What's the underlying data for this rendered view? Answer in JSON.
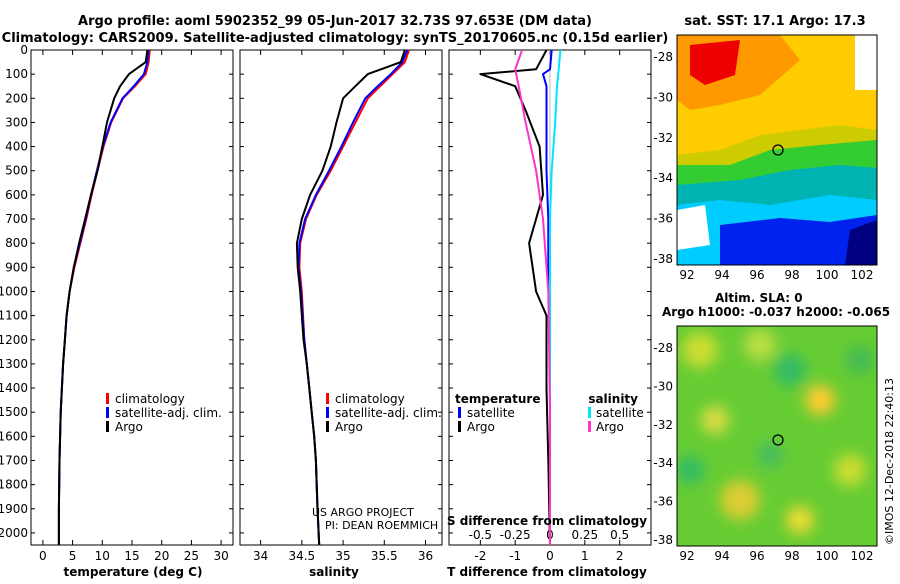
{
  "header": {
    "line1": "Argo profile: aoml 5902352_99 05-Jun-2017 32.73S 97.653E (DM data)",
    "line2": "Climatology: CARS2009. Satellite-adjusted climatology: synTS_20170605.nc (0.15d earlier)"
  },
  "colors": {
    "climatology": "#ff0000",
    "satellite_adj": "#0000ff",
    "argo": "#000000",
    "satellite_s": "#00e5ff",
    "argo_s": "#ff33cc"
  },
  "chart_data": [
    {
      "type": "line",
      "panel": "temperature",
      "xlabel": "temperature (deg C)",
      "ylabel": "",
      "xlim": [
        -2,
        32
      ],
      "ylim": [
        2050,
        0
      ],
      "xticks": [
        0,
        5,
        10,
        15,
        20,
        25,
        30
      ],
      "yticks": [
        0,
        100,
        200,
        300,
        400,
        500,
        600,
        700,
        800,
        900,
        1000,
        1100,
        1200,
        1300,
        1400,
        1500,
        1600,
        1700,
        1800,
        1900,
        2000
      ],
      "legend": [
        "climatology",
        "satellite-adj. clim.",
        "Argo"
      ],
      "series": [
        {
          "name": "climatology",
          "x": [
            18,
            17.8,
            17.3,
            15.5,
            13.5,
            11.5,
            10.2,
            9.2,
            8.2,
            7.3,
            6.3,
            5.3,
            4.5,
            4.0,
            3.7,
            3.4,
            3.2,
            3.0,
            2.9,
            2.8,
            2.7,
            2.7
          ],
          "y": [
            0,
            50,
            100,
            150,
            200,
            300,
            400,
            500,
            600,
            700,
            800,
            900,
            1000,
            1100,
            1200,
            1300,
            1400,
            1500,
            1600,
            1700,
            1900,
            2050
          ]
        },
        {
          "name": "satellite-adj. clim.",
          "x": [
            17.8,
            17.6,
            17.0,
            15.3,
            13.4,
            11.4,
            10.1,
            9.1,
            8.1,
            7.2,
            6.2,
            5.2,
            4.5,
            4.0,
            3.7,
            3.4,
            3.2,
            3.0,
            2.9,
            2.8,
            2.7,
            2.7
          ],
          "y": [
            0,
            50,
            100,
            150,
            200,
            300,
            400,
            500,
            600,
            700,
            800,
            900,
            1000,
            1100,
            1200,
            1300,
            1400,
            1500,
            1600,
            1700,
            1900,
            2050
          ]
        },
        {
          "name": "Argo",
          "x": [
            17.6,
            17.3,
            14.5,
            13.0,
            12.0,
            10.8,
            10.0,
            9.2,
            8.1,
            7.1,
            6.1,
            5.2,
            4.5,
            4.0,
            3.7,
            3.4,
            3.2,
            3.0,
            2.9,
            2.8,
            2.7,
            2.7
          ],
          "y": [
            0,
            50,
            100,
            150,
            200,
            300,
            400,
            500,
            600,
            700,
            800,
            900,
            1000,
            1100,
            1200,
            1300,
            1400,
            1500,
            1600,
            1700,
            1900,
            2050
          ]
        }
      ]
    },
    {
      "type": "line",
      "panel": "salinity",
      "xlabel": "salinity",
      "xlim": [
        33.75,
        36.2
      ],
      "ylim": [
        2050,
        0
      ],
      "xticks": [
        34,
        34.5,
        35,
        35.5,
        36
      ],
      "legend": [
        "climatology",
        "satellite-adj. clim.",
        "Argo"
      ],
      "series": [
        {
          "name": "climatology",
          "x": [
            35.8,
            35.75,
            35.6,
            35.45,
            35.3,
            35.15,
            35.0,
            34.85,
            34.68,
            34.55,
            34.48,
            34.47,
            34.5,
            34.53,
            34.56,
            34.59,
            34.62,
            34.65,
            34.67,
            34.69,
            34.71
          ],
          "y": [
            0,
            50,
            100,
            150,
            200,
            300,
            400,
            500,
            600,
            700,
            800,
            900,
            1000,
            1200,
            1300,
            1400,
            1500,
            1600,
            1700,
            1900,
            2050
          ]
        },
        {
          "name": "satellite-adj. clim.",
          "x": [
            35.78,
            35.72,
            35.58,
            35.42,
            35.27,
            35.12,
            34.98,
            34.83,
            34.67,
            34.54,
            34.47,
            34.46,
            34.49,
            34.53,
            34.56,
            34.59,
            34.62,
            34.65,
            34.67,
            34.69,
            34.71
          ],
          "y": [
            0,
            50,
            100,
            150,
            200,
            300,
            400,
            500,
            600,
            700,
            800,
            900,
            1000,
            1200,
            1300,
            1400,
            1500,
            1600,
            1700,
            1900,
            2050
          ]
        },
        {
          "name": "Argo",
          "x": [
            35.75,
            35.7,
            35.3,
            35.15,
            35.0,
            34.92,
            34.85,
            34.75,
            34.6,
            34.5,
            34.44,
            34.45,
            34.48,
            34.52,
            34.56,
            34.59,
            34.62,
            34.65,
            34.67,
            34.69,
            34.71
          ],
          "y": [
            0,
            50,
            100,
            150,
            200,
            300,
            400,
            500,
            600,
            700,
            800,
            900,
            1000,
            1200,
            1300,
            1400,
            1500,
            1600,
            1700,
            1900,
            2050
          ]
        }
      ]
    },
    {
      "type": "line",
      "panel": "difference",
      "xlabel": "T difference from climatology",
      "xlabel_top": "S difference from climatology",
      "xlim": [
        -2.9,
        2.9
      ],
      "ylim": [
        2050,
        0
      ],
      "xticks": [
        -2,
        -1,
        0,
        1,
        2
      ],
      "xticks_s": [
        "-0.5",
        "-0.25",
        "0",
        "0.25",
        "0.5"
      ],
      "xticks_s_pos": [
        -2,
        -1,
        0,
        1,
        2
      ],
      "legend_groups": [
        "temperature",
        "salinity"
      ],
      "legend": [
        "satellite",
        "Argo",
        "satellite",
        "Argo"
      ],
      "series": [
        {
          "name": "T satellite",
          "x": [
            0.05,
            0.0,
            -0.2,
            -0.1,
            -0.1,
            -0.1,
            -0.05,
            -0.05,
            0.0,
            0.0,
            0.0,
            0.0
          ],
          "y": [
            0,
            80,
            100,
            150,
            300,
            500,
            700,
            900,
            1100,
            1400,
            1700,
            2050
          ]
        },
        {
          "name": "T Argo",
          "x": [
            -0.1,
            -0.4,
            -2.0,
            -1.0,
            -0.7,
            -0.3,
            -0.2,
            -0.6,
            -0.5,
            -0.4,
            -0.1,
            -0.1,
            -0.05,
            0.0
          ],
          "y": [
            0,
            80,
            100,
            150,
            250,
            400,
            600,
            800,
            900,
            1000,
            1100,
            1400,
            1700,
            2050
          ]
        },
        {
          "name": "S satellite",
          "x": [
            0.3,
            0.25,
            0.2,
            0.15,
            0.05,
            0.0,
            0.0,
            0.0,
            0.0
          ],
          "y": [
            0,
            80,
            150,
            300,
            500,
            700,
            1000,
            1500,
            2050
          ]
        },
        {
          "name": "S Argo",
          "x": [
            -0.8,
            -1.0,
            -0.9,
            -0.7,
            -0.4,
            -0.2,
            -0.05,
            0.0,
            0.0
          ],
          "y": [
            0,
            80,
            150,
            300,
            500,
            700,
            1000,
            1500,
            2050
          ]
        }
      ]
    }
  ],
  "maps": {
    "sst_title": "sat. SST: 17.1  Argo: 17.3",
    "sla_title1": "Altim. SLA: 0",
    "sla_title2": "Argo h1000: -0.037  h2000: -0.065",
    "lat_ticks": [
      "-28",
      "-30",
      "-32",
      "-34",
      "-36",
      "-38"
    ],
    "lon_ticks": [
      "92",
      "94",
      "96",
      "98",
      "100",
      "102"
    ]
  },
  "annotations": {
    "project_line1": "US ARGO PROJECT",
    "project_line2": "PI: DEAN ROEMMICH",
    "imos_stamp": "©IMOS 12-Dec-2018 22:40:13"
  }
}
